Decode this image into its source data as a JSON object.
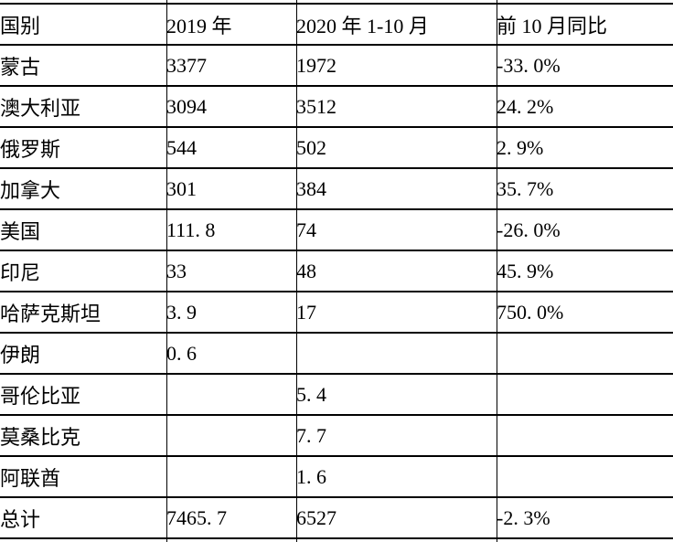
{
  "table": {
    "columns": [
      "国别",
      "2019 年",
      "2020 年 1-10 月",
      "前 10 月同比"
    ],
    "rows": [
      [
        "蒙古",
        "3377",
        "1972",
        "-33. 0%"
      ],
      [
        "澳大利亚",
        "3094",
        "3512",
        "24. 2%"
      ],
      [
        "俄罗斯",
        "544",
        "502",
        "2. 9%"
      ],
      [
        "加拿大",
        "301",
        "384",
        "35. 7%"
      ],
      [
        "美国",
        "111. 8",
        "74",
        "-26. 0%"
      ],
      [
        "印尼",
        "33",
        "48",
        "45. 9%"
      ],
      [
        "哈萨克斯坦",
        "3. 9",
        "17",
        "750. 0%"
      ],
      [
        "伊朗",
        "0. 6",
        "",
        ""
      ],
      [
        "哥伦比亚",
        "",
        "5. 4",
        ""
      ],
      [
        "莫桑比克",
        "",
        "7. 7",
        ""
      ],
      [
        "阿联酋",
        "",
        "1. 6",
        ""
      ],
      [
        "总计",
        "7465. 7",
        "6527",
        "-2. 3%"
      ]
    ],
    "colors": {
      "border": "#000000",
      "text": "#000000",
      "background": "#ffffff"
    }
  }
}
